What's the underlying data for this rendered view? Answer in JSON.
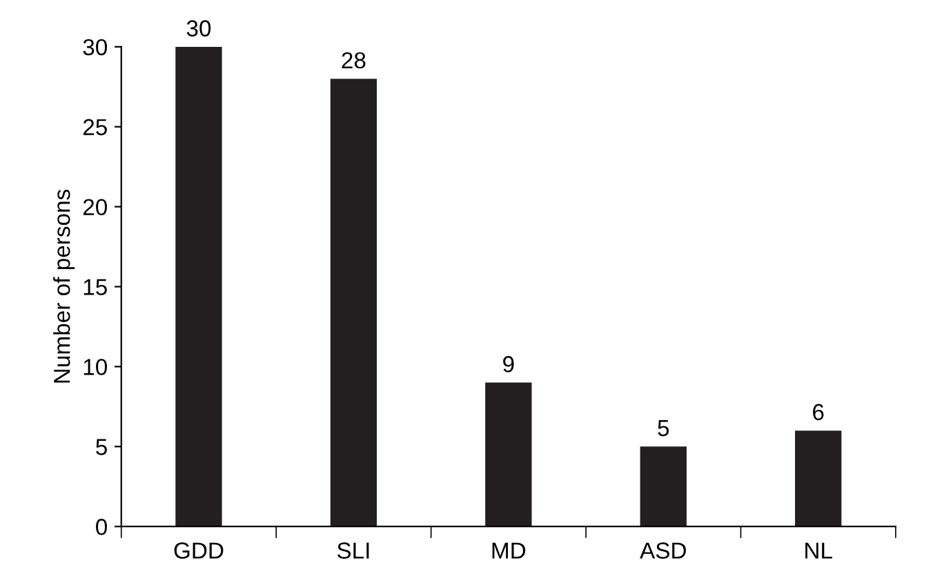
{
  "chart_data": {
    "type": "bar",
    "ylabel": "Number of persons",
    "categories": [
      "GDD",
      "SLI",
      "MD",
      "ASD",
      "NL"
    ],
    "values": [
      30,
      28,
      9,
      5,
      6
    ],
    "color": "#231f20",
    "ylim": [
      0,
      30
    ],
    "yticks": [
      0,
      5,
      10,
      15,
      20,
      25,
      30
    ],
    "data_labels": true,
    "grid": false,
    "legend": false
  }
}
